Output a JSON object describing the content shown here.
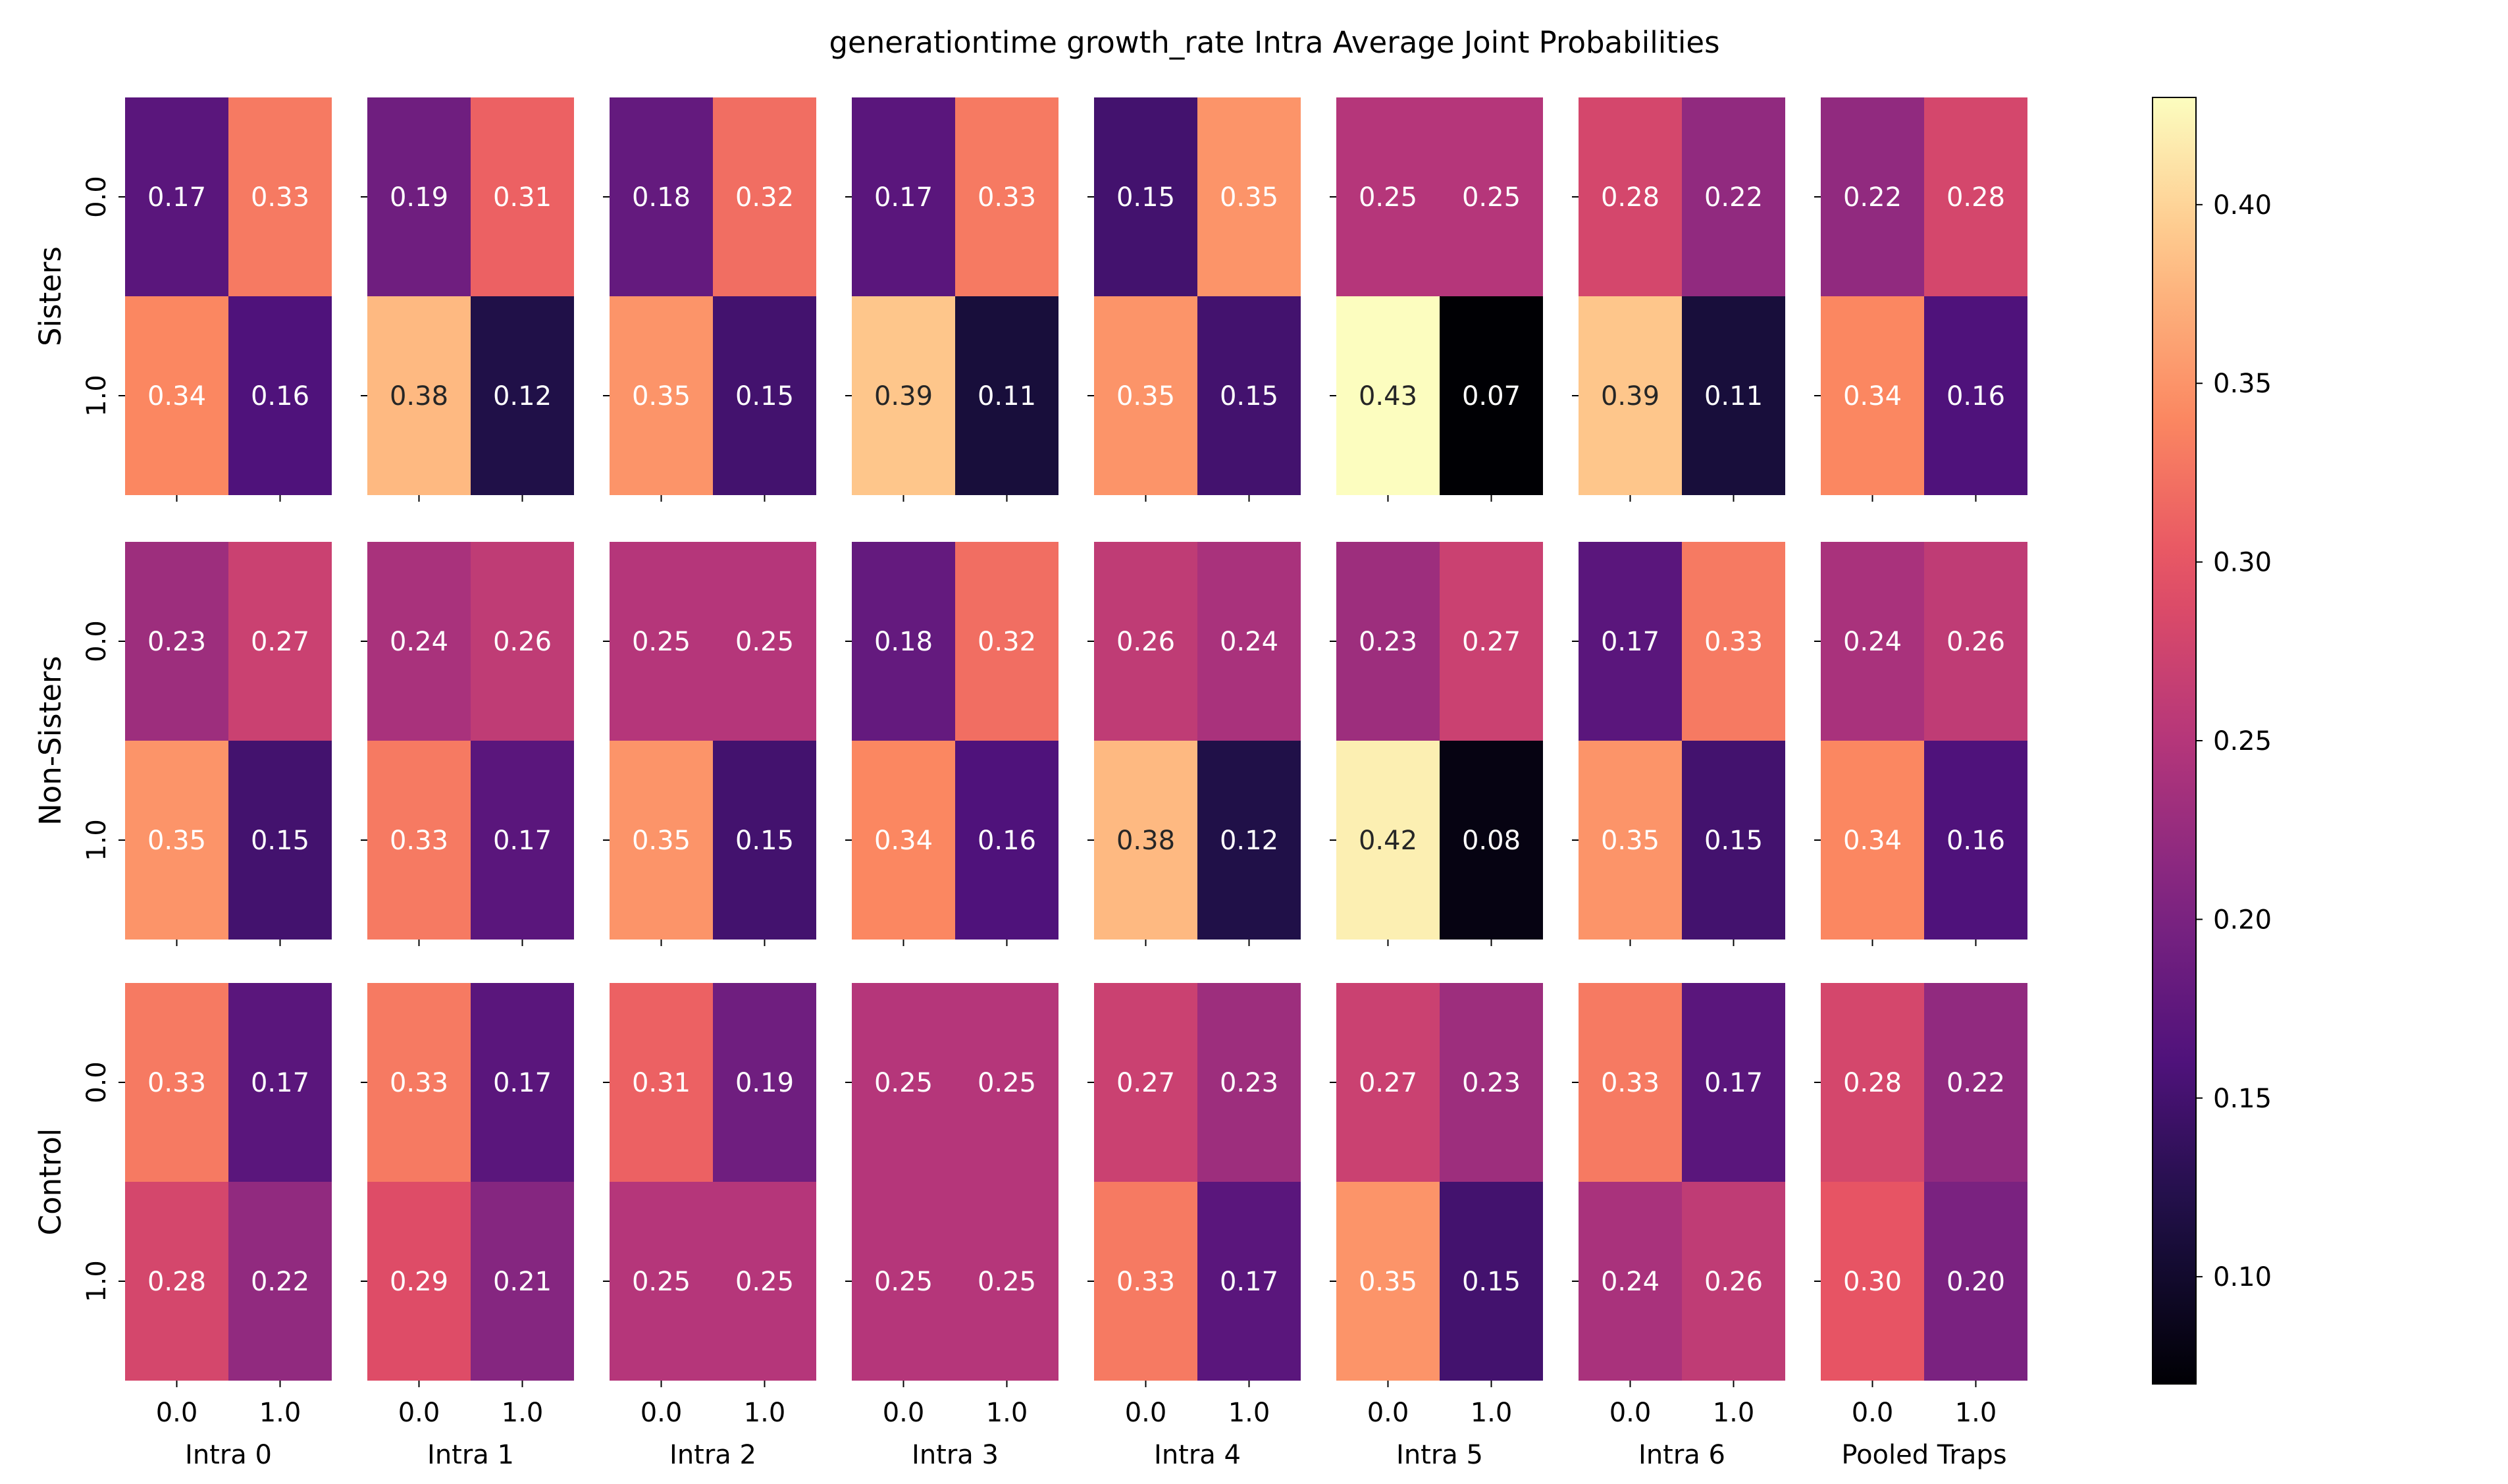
{
  "chart_data": {
    "type": "heatmap",
    "title": "generationtime growth_rate Intra Average Joint Probabilities",
    "colormap": "magma",
    "row_groups": [
      "Sisters",
      "Non-Sisters",
      "Control"
    ],
    "column_groups": [
      "Intra 0",
      "Intra 1",
      "Intra 2",
      "Intra 3",
      "Intra 4",
      "Intra 5",
      "Intra 6",
      "Pooled Traps"
    ],
    "cell_x_ticks": [
      "0.0",
      "1.0"
    ],
    "cell_y_ticks": [
      "0.0",
      "1.0"
    ],
    "colorbar": {
      "range": [
        0.07,
        0.43
      ],
      "ticks": [
        "0.10",
        "0.15",
        "0.20",
        "0.25",
        "0.30",
        "0.35",
        "0.40"
      ]
    },
    "matrices": [
      [
        [
          [
            0.17,
            0.33
          ],
          [
            0.34,
            0.16
          ]
        ],
        [
          [
            0.19,
            0.31
          ],
          [
            0.38,
            0.12
          ]
        ],
        [
          [
            0.18,
            0.32
          ],
          [
            0.35,
            0.15
          ]
        ],
        [
          [
            0.17,
            0.33
          ],
          [
            0.39,
            0.11
          ]
        ],
        [
          [
            0.15,
            0.35
          ],
          [
            0.35,
            0.15
          ]
        ],
        [
          [
            0.25,
            0.25
          ],
          [
            0.43,
            0.07
          ]
        ],
        [
          [
            0.28,
            0.22
          ],
          [
            0.39,
            0.11
          ]
        ],
        [
          [
            0.22,
            0.28
          ],
          [
            0.34,
            0.16
          ]
        ]
      ],
      [
        [
          [
            0.23,
            0.27
          ],
          [
            0.35,
            0.15
          ]
        ],
        [
          [
            0.24,
            0.26
          ],
          [
            0.33,
            0.17
          ]
        ],
        [
          [
            0.25,
            0.25
          ],
          [
            0.35,
            0.15
          ]
        ],
        [
          [
            0.18,
            0.32
          ],
          [
            0.34,
            0.16
          ]
        ],
        [
          [
            0.26,
            0.24
          ],
          [
            0.38,
            0.12
          ]
        ],
        [
          [
            0.23,
            0.27
          ],
          [
            0.42,
            0.08
          ]
        ],
        [
          [
            0.17,
            0.33
          ],
          [
            0.35,
            0.15
          ]
        ],
        [
          [
            0.24,
            0.26
          ],
          [
            0.34,
            0.16
          ]
        ]
      ],
      [
        [
          [
            0.33,
            0.17
          ],
          [
            0.28,
            0.22
          ]
        ],
        [
          [
            0.33,
            0.17
          ],
          [
            0.29,
            0.21
          ]
        ],
        [
          [
            0.31,
            0.19
          ],
          [
            0.25,
            0.25
          ]
        ],
        [
          [
            0.25,
            0.25
          ],
          [
            0.25,
            0.25
          ]
        ],
        [
          [
            0.27,
            0.23
          ],
          [
            0.33,
            0.17
          ]
        ],
        [
          [
            0.27,
            0.23
          ],
          [
            0.35,
            0.15
          ]
        ],
        [
          [
            0.33,
            0.17
          ],
          [
            0.24,
            0.26
          ]
        ],
        [
          [
            0.28,
            0.22
          ],
          [
            0.3,
            0.2
          ]
        ]
      ]
    ]
  }
}
